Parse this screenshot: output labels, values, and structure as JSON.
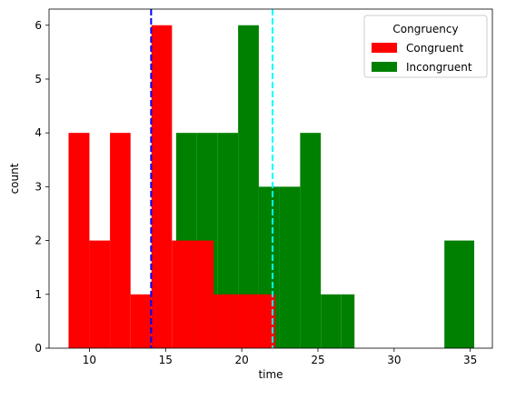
{
  "chart_data": {
    "type": "bar",
    "xlabel": "time",
    "ylabel": "count",
    "xlim": [
      7.35,
      36.45
    ],
    "ylim": [
      0,
      6.3
    ],
    "xticks": [
      10,
      15,
      20,
      25,
      30,
      35
    ],
    "yticks": [
      0,
      1,
      2,
      3,
      4,
      5,
      6
    ],
    "legend": {
      "title": "Congruency",
      "placement": "top-right",
      "entries": [
        "Congruent",
        "Incongruent"
      ]
    },
    "series": [
      {
        "name": "Incongruent",
        "color": "#008000",
        "bins": [
          {
            "x0": 15.69,
            "x1": 17.05,
            "count": 4
          },
          {
            "x0": 17.05,
            "x1": 18.4,
            "count": 4
          },
          {
            "x0": 18.4,
            "x1": 19.76,
            "count": 4
          },
          {
            "x0": 19.76,
            "x1": 21.12,
            "count": 6
          },
          {
            "x0": 21.12,
            "x1": 22.47,
            "count": 3
          },
          {
            "x0": 22.47,
            "x1": 23.83,
            "count": 3
          },
          {
            "x0": 23.83,
            "x1": 25.19,
            "count": 4
          },
          {
            "x0": 25.19,
            "x1": 26.54,
            "count": 1
          },
          {
            "x0": 26.54,
            "x1": 27.4,
            "count": 1
          },
          {
            "x0": 33.3,
            "x1": 35.26,
            "count": 2
          }
        ]
      },
      {
        "name": "Congruent",
        "color": "#ff0000",
        "bins": [
          {
            "x0": 8.63,
            "x1": 10.0,
            "count": 4
          },
          {
            "x0": 10.0,
            "x1": 11.35,
            "count": 2
          },
          {
            "x0": 11.35,
            "x1": 12.7,
            "count": 4
          },
          {
            "x0": 12.7,
            "x1": 14.07,
            "count": 1
          },
          {
            "x0": 14.07,
            "x1": 15.42,
            "count": 6
          },
          {
            "x0": 15.42,
            "x1": 16.78,
            "count": 2
          },
          {
            "x0": 16.78,
            "x1": 18.15,
            "count": 2
          },
          {
            "x0": 18.15,
            "x1": 19.5,
            "count": 1
          },
          {
            "x0": 19.5,
            "x1": 20.86,
            "count": 1
          },
          {
            "x0": 20.86,
            "x1": 22.2,
            "count": 1
          }
        ]
      }
    ],
    "reference_lines": [
      {
        "x": 14.05,
        "color": "#0000ff",
        "style": "dashed"
      },
      {
        "x": 22.02,
        "color": "#00ffff",
        "style": "dashed"
      }
    ]
  }
}
